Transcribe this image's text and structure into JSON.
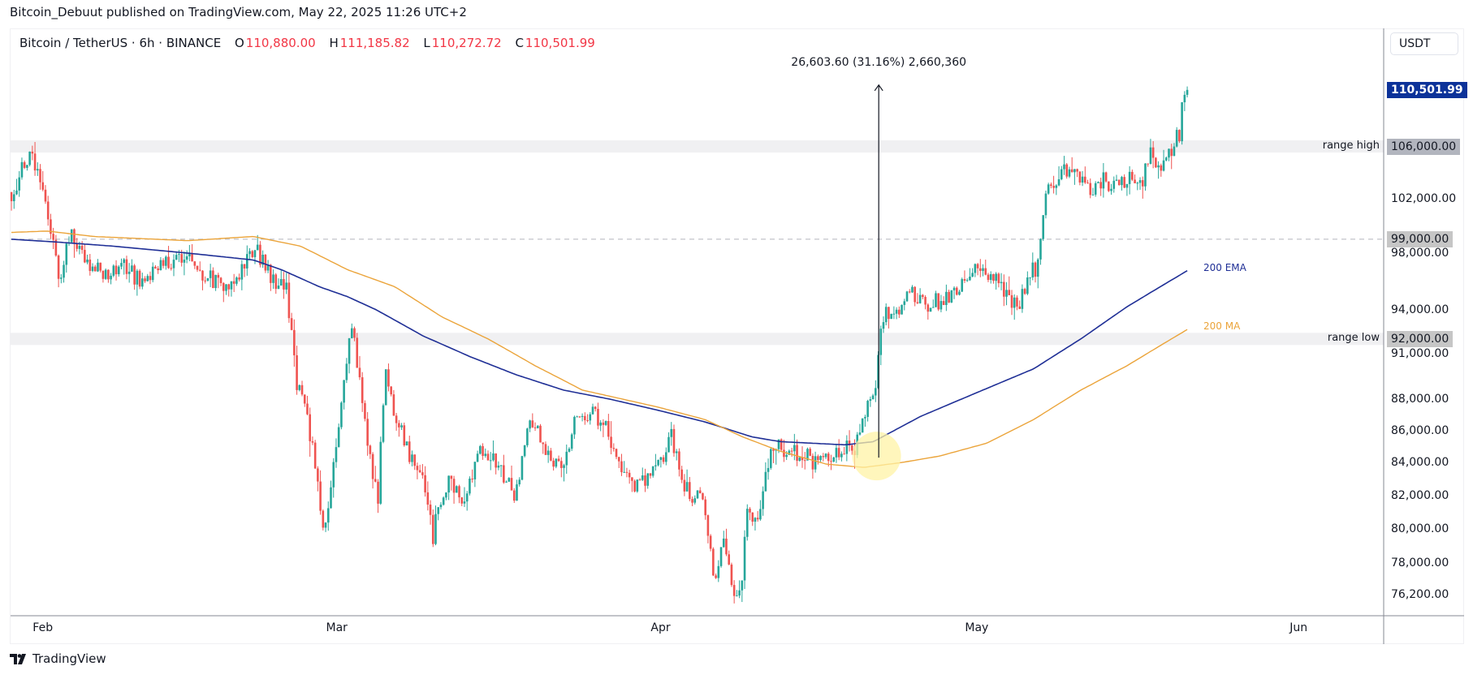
{
  "header": {
    "published": "Bitcoin_Debuut published on TradingView.com, May 22, 2025 11:26 UTC+2"
  },
  "legend": {
    "symbol": "Bitcoin / TetherUS · 6h · BINANCE",
    "o_label": "O",
    "o_value": "110,880.00",
    "h_label": "H",
    "h_value": "111,185.82",
    "l_label": "L",
    "l_value": "110,272.72",
    "c_label": "C",
    "c_value": "110,501.99"
  },
  "price_axis": {
    "currency": "USDT",
    "current_price": {
      "value": 110501.99,
      "text": "110,501.99",
      "color": "#0c3299"
    },
    "marked": [
      {
        "value": 106000,
        "text": "106,000.00"
      },
      {
        "value": 99000,
        "text": "99,000.00"
      },
      {
        "value": 92000,
        "text": "92,000.00"
      }
    ],
    "ticks": [
      {
        "value": 102000,
        "text": "102,000.00"
      },
      {
        "value": 98000,
        "text": "98,000.00"
      },
      {
        "value": 94000,
        "text": "94,000.00"
      },
      {
        "value": 91000,
        "text": "91,000.00"
      },
      {
        "value": 88000,
        "text": "88,000.00"
      },
      {
        "value": 86000,
        "text": "86,000.00"
      },
      {
        "value": 84000,
        "text": "84,000.00"
      },
      {
        "value": 82000,
        "text": "82,000.00"
      },
      {
        "value": 80000,
        "text": "80,000.00"
      },
      {
        "value": 78000,
        "text": "78,000.00"
      },
      {
        "value": 76200,
        "text": "76,200.00"
      }
    ]
  },
  "time_axis": [
    {
      "day": 0,
      "text": "Feb"
    },
    {
      "day": 28,
      "text": "Mar"
    },
    {
      "day": 59,
      "text": "Apr"
    },
    {
      "day": 89,
      "text": "May"
    },
    {
      "day": 120,
      "text": "Jun"
    }
  ],
  "annotations": {
    "range_high": {
      "label": "range high",
      "value": 106000
    },
    "range_low": {
      "label": "range low",
      "value": 92000
    },
    "dashed_level": 99000,
    "ema_label": "200 EMA",
    "ma_label": "200 MA",
    "measure": {
      "text": "26,603.60 (31.16%) 2,660,360",
      "day": 80.3,
      "from": 84300,
      "to": 110900
    },
    "highlight": {
      "day": 80.1,
      "price": 84400
    }
  },
  "brand": {
    "name": "TradingView"
  },
  "chart_data": {
    "type": "candlestick",
    "title": "Bitcoin / TetherUS · 6h · BINANCE",
    "x_unit": "days since Feb 1, 2025",
    "y_scale": "log",
    "ylim": [
      74500,
      113500
    ],
    "colors": {
      "up": "#26a69a",
      "down": "#ef5350",
      "ema": "#1f2f96",
      "ma": "#eba43a"
    },
    "candles_close_path": [
      [
        -2.5,
        102500
      ],
      [
        -0.9,
        105000
      ],
      [
        0,
        104500
      ],
      [
        0.9,
        101500
      ],
      [
        2,
        96000
      ],
      [
        3.1,
        99500
      ],
      [
        4.5,
        97500
      ],
      [
        6.3,
        96500
      ],
      [
        8.1,
        97000
      ],
      [
        9.9,
        96000
      ],
      [
        11.7,
        97000
      ],
      [
        13.9,
        98000
      ],
      [
        15.7,
        96500
      ],
      [
        17.9,
        95500
      ],
      [
        19.3,
        96500
      ],
      [
        20.6,
        98500
      ],
      [
        22,
        96500
      ],
      [
        23.8,
        95500
      ],
      [
        24.7,
        89000
      ],
      [
        25.6,
        87000
      ],
      [
        26.5,
        84000
      ],
      [
        27.4,
        79500
      ],
      [
        28.7,
        86000
      ],
      [
        30,
        93000
      ],
      [
        30.9,
        88000
      ],
      [
        31.8,
        84000
      ],
      [
        32.5,
        82000
      ],
      [
        33.2,
        90000
      ],
      [
        34.1,
        87000
      ],
      [
        35.4,
        84500
      ],
      [
        36.8,
        83000
      ],
      [
        37.7,
        79500
      ],
      [
        38.6,
        82000
      ],
      [
        39.5,
        83000
      ],
      [
        40.8,
        81500
      ],
      [
        42.2,
        84500
      ],
      [
        43.9,
        84000
      ],
      [
        45.7,
        82000
      ],
      [
        47.1,
        87000
      ],
      [
        48.4,
        84500
      ],
      [
        50.2,
        84000
      ],
      [
        51.6,
        87500
      ],
      [
        52.9,
        87000
      ],
      [
        54.3,
        86500
      ],
      [
        55.6,
        83500
      ],
      [
        56.9,
        82500
      ],
      [
        58.3,
        83000
      ],
      [
        59.6,
        84000
      ],
      [
        60.5,
        86000
      ],
      [
        61.4,
        83000
      ],
      [
        62.3,
        82000
      ],
      [
        63.7,
        81500
      ],
      [
        64.6,
        77000
      ],
      [
        65.5,
        79000
      ],
      [
        66.4,
        76500
      ],
      [
        67.3,
        77000
      ],
      [
        67.7,
        81500
      ],
      [
        68.6,
        80000
      ],
      [
        69.5,
        83500
      ],
      [
        70.4,
        85000
      ],
      [
        71.7,
        84500
      ],
      [
        73.1,
        84500
      ],
      [
        74.4,
        84000
      ],
      [
        75.8,
        84500
      ],
      [
        77.1,
        85000
      ],
      [
        78,
        84500
      ],
      [
        78.9,
        87000
      ],
      [
        79.8,
        88000
      ],
      [
        80.7,
        93500
      ],
      [
        82,
        94000
      ],
      [
        83.4,
        95000
      ],
      [
        84.7,
        94500
      ],
      [
        86.1,
        94500
      ],
      [
        87.4,
        95000
      ],
      [
        88.8,
        96500
      ],
      [
        90.1,
        97000
      ],
      [
        91.5,
        96000
      ],
      [
        92.8,
        94500
      ],
      [
        93.7,
        94000
      ],
      [
        94.6,
        96500
      ],
      [
        95.5,
        97000
      ],
      [
        96,
        100500
      ],
      [
        96.5,
        103000
      ],
      [
        97.3,
        103500
      ],
      [
        98.2,
        104000
      ],
      [
        99.6,
        103500
      ],
      [
        100.5,
        102500
      ],
      [
        101.8,
        103500
      ],
      [
        102.7,
        103000
      ],
      [
        104,
        103500
      ],
      [
        105.4,
        103000
      ],
      [
        106.3,
        105500
      ],
      [
        107.2,
        104000
      ],
      [
        108.1,
        105500
      ],
      [
        109,
        107000
      ],
      [
        109.4,
        110500
      ],
      [
        109.9,
        110502
      ]
    ],
    "ema_200": [
      [
        -2.5,
        99000
      ],
      [
        1.8,
        98800
      ],
      [
        7.2,
        98500
      ],
      [
        14.3,
        98000
      ],
      [
        20.6,
        97500
      ],
      [
        23.3,
        96800
      ],
      [
        26.9,
        95600
      ],
      [
        29.6,
        94900
      ],
      [
        32.3,
        94000
      ],
      [
        36.8,
        92200
      ],
      [
        41.3,
        90800
      ],
      [
        45.7,
        89600
      ],
      [
        50.2,
        88600
      ],
      [
        54.7,
        88000
      ],
      [
        59.2,
        87300
      ],
      [
        63.7,
        86550
      ],
      [
        68.2,
        85600
      ],
      [
        70.9,
        85300
      ],
      [
        77.1,
        85100
      ],
      [
        79.8,
        85300
      ],
      [
        84.3,
        86900
      ],
      [
        90.6,
        88700
      ],
      [
        95.1,
        90000
      ],
      [
        99.6,
        92000
      ],
      [
        104,
        94200
      ],
      [
        109.9,
        96800
      ]
    ],
    "ma_200": [
      [
        -2.5,
        99500
      ],
      [
        0.9,
        99600
      ],
      [
        5.4,
        99200
      ],
      [
        14.3,
        98900
      ],
      [
        20.6,
        99200
      ],
      [
        25.1,
        98500
      ],
      [
        29.6,
        96800
      ],
      [
        34.1,
        95600
      ],
      [
        38.6,
        93500
      ],
      [
        43.0,
        92000
      ],
      [
        47.5,
        90200
      ],
      [
        52.0,
        88600
      ],
      [
        59.2,
        87500
      ],
      [
        63.7,
        86700
      ],
      [
        67.3,
        85600
      ],
      [
        70.9,
        84700
      ],
      [
        75.3,
        83900
      ],
      [
        78.9,
        83700
      ],
      [
        82.5,
        84000
      ],
      [
        86.1,
        84400
      ],
      [
        90.6,
        85200
      ],
      [
        95.1,
        86700
      ],
      [
        99.6,
        88600
      ],
      [
        104,
        90200
      ],
      [
        109.9,
        92700
      ]
    ]
  }
}
